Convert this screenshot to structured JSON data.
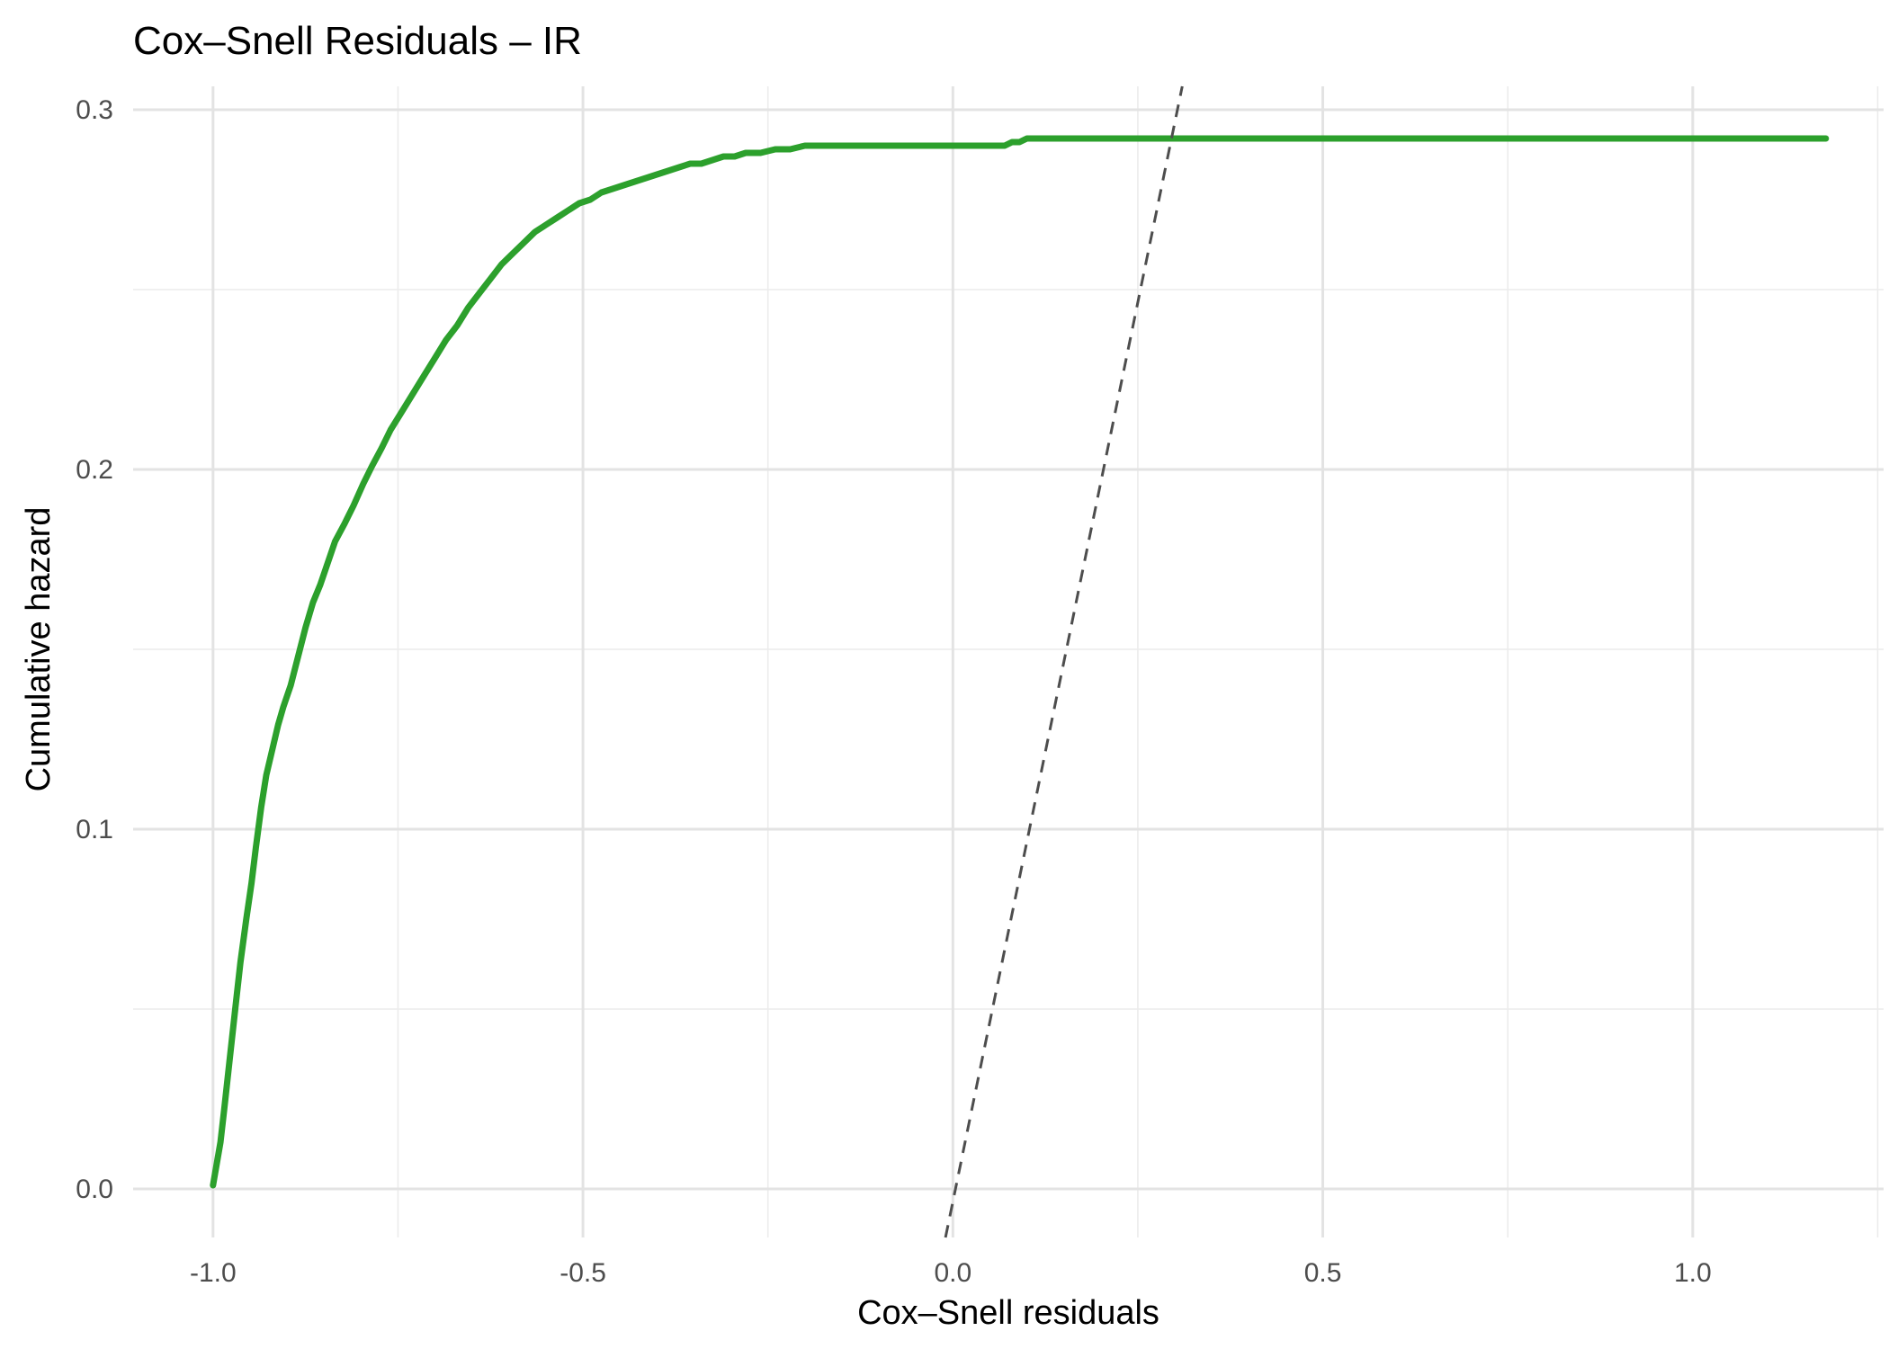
{
  "chart_data": {
    "type": "line",
    "title": "Cox–Snell Residuals – IR",
    "xlabel": "Cox–Snell residuals",
    "ylabel": "Cumulative hazard",
    "xlim": [
      -1.108,
      1.258
    ],
    "ylim": [
      -0.0135,
      0.3065
    ],
    "x_ticks": [
      -1.0,
      -0.5,
      0.0,
      0.5,
      1.0
    ],
    "x_tick_labels": [
      "-1.0",
      "-0.5",
      "0.0",
      "0.5",
      "1.0"
    ],
    "x_minor_ticks": [
      -0.75,
      -0.25,
      0.25,
      0.75,
      1.25
    ],
    "y_ticks": [
      0.0,
      0.1,
      0.2,
      0.3
    ],
    "y_tick_labels": [
      "0.0",
      "0.1",
      "0.2",
      "0.3"
    ],
    "y_minor_ticks": [
      0.05,
      0.15,
      0.25
    ],
    "grid": true,
    "legend": "none",
    "series": [
      {
        "color": "#2ca02c",
        "style": "solid",
        "x": [
          -1.0,
          -0.99,
          -0.985,
          -0.978,
          -0.97,
          -0.963,
          -0.955,
          -0.948,
          -0.942,
          -0.935,
          -0.928,
          -0.92,
          -0.912,
          -0.905,
          -0.895,
          -0.885,
          -0.875,
          -0.865,
          -0.855,
          -0.845,
          -0.835,
          -0.822,
          -0.81,
          -0.797,
          -0.785,
          -0.772,
          -0.76,
          -0.745,
          -0.73,
          -0.715,
          -0.7,
          -0.685,
          -0.67,
          -0.655,
          -0.64,
          -0.625,
          -0.61,
          -0.595,
          -0.58,
          -0.565,
          -0.55,
          -0.535,
          -0.52,
          -0.505,
          -0.49,
          -0.475,
          -0.46,
          -0.445,
          -0.43,
          -0.415,
          -0.4,
          -0.385,
          -0.37,
          -0.355,
          -0.34,
          -0.325,
          -0.31,
          -0.295,
          -0.28,
          -0.26,
          -0.24,
          -0.22,
          -0.2,
          -0.18,
          -0.16,
          -0.14,
          -0.12,
          -0.1,
          -0.08,
          -0.06,
          -0.04,
          -0.02,
          0.0,
          0.02,
          0.05,
          0.07,
          0.08,
          0.09,
          0.1,
          0.15,
          0.2,
          0.3,
          0.4,
          0.5,
          0.6,
          0.7,
          0.8,
          0.9,
          1.0,
          1.1,
          1.18
        ],
        "y": [
          0.001,
          0.013,
          0.022,
          0.035,
          0.05,
          0.063,
          0.075,
          0.085,
          0.095,
          0.106,
          0.115,
          0.122,
          0.129,
          0.134,
          0.14,
          0.148,
          0.156,
          0.163,
          0.168,
          0.174,
          0.18,
          0.185,
          0.19,
          0.196,
          0.201,
          0.206,
          0.211,
          0.216,
          0.221,
          0.226,
          0.231,
          0.236,
          0.24,
          0.245,
          0.249,
          0.253,
          0.257,
          0.26,
          0.263,
          0.266,
          0.268,
          0.27,
          0.272,
          0.274,
          0.275,
          0.277,
          0.278,
          0.279,
          0.28,
          0.281,
          0.282,
          0.283,
          0.284,
          0.285,
          0.285,
          0.286,
          0.287,
          0.287,
          0.288,
          0.288,
          0.289,
          0.289,
          0.29,
          0.29,
          0.29,
          0.29,
          0.29,
          0.29,
          0.29,
          0.29,
          0.29,
          0.29,
          0.29,
          0.29,
          0.29,
          0.29,
          0.291,
          0.291,
          0.292,
          0.292,
          0.292,
          0.292,
          0.292,
          0.292,
          0.292,
          0.292,
          0.292,
          0.292,
          0.292,
          0.292,
          0.292
        ]
      },
      {
        "color": "#4d4d4d",
        "style": "dashed",
        "x": [
          -0.01,
          0.31
        ],
        "y": [
          -0.0135,
          0.3065
        ]
      }
    ]
  }
}
